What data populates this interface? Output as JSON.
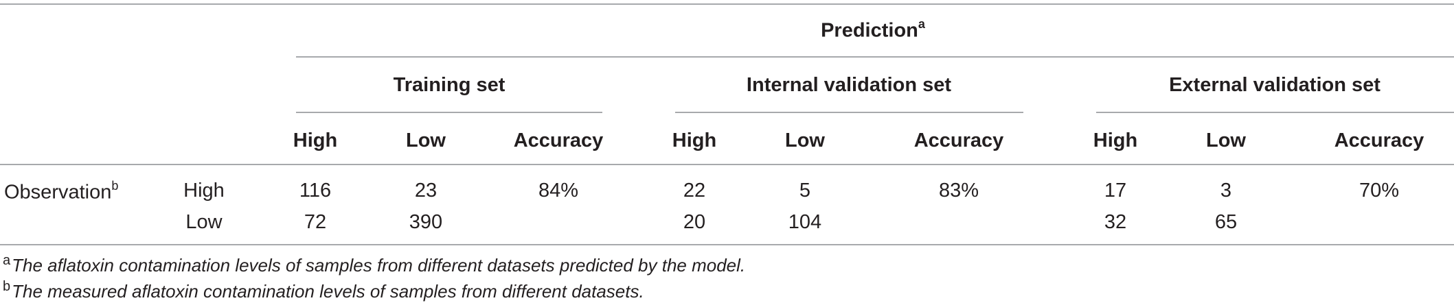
{
  "table": {
    "prediction_header": "Prediction",
    "prediction_mark": "a",
    "groups": [
      {
        "label": "Training set"
      },
      {
        "label": "Internal validation set"
      },
      {
        "label": "External validation set"
      }
    ],
    "subheaders": [
      "High",
      "Low",
      "Accuracy",
      "High",
      "Low",
      "Accuracy",
      "High",
      "Low",
      "Accuracy"
    ],
    "observation_label": "Observation",
    "observation_mark": "b",
    "rows": [
      {
        "class": "High",
        "cells": [
          "116",
          "23",
          "84%",
          "22",
          "5",
          "83%",
          "17",
          "3",
          "70%"
        ]
      },
      {
        "class": "Low",
        "cells": [
          "72",
          "390",
          "",
          "20",
          "104",
          "",
          "32",
          "65",
          ""
        ]
      }
    ]
  },
  "footnotes": [
    {
      "mark": "a",
      "text": "The aflatoxin contamination levels of samples from different datasets predicted by the model."
    },
    {
      "mark": "b",
      "text": "The measured aflatoxin contamination levels of samples from different datasets."
    }
  ]
}
